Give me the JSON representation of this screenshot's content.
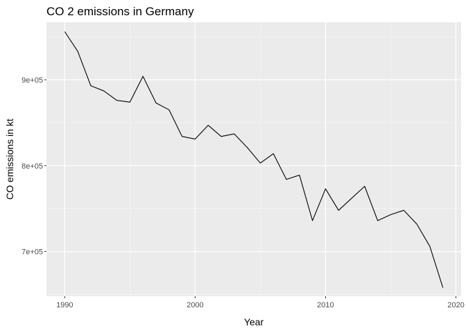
{
  "chart_data": {
    "type": "line",
    "title": "CO 2 emissions in Germany",
    "xlabel": "Year",
    "ylabel": "CO emissions in kt",
    "xlim": [
      1988.6,
      2020.4
    ],
    "ylim": [
      648000,
      967000
    ],
    "x_ticks": [
      1990,
      2000,
      2010,
      2020
    ],
    "x_tick_labels": [
      "1990",
      "2000",
      "2010",
      "2020"
    ],
    "y_ticks": [
      700000,
      800000,
      900000
    ],
    "y_tick_labels": [
      "7e+05",
      "8e+05",
      "9e+05"
    ],
    "grid": true,
    "legend": "none",
    "series": [
      {
        "color": "#000000",
        "x": [
          1990,
          1991,
          1992,
          1993,
          1994,
          1995,
          1996,
          1997,
          1998,
          1999,
          2000,
          2001,
          2002,
          2003,
          2004,
          2005,
          2006,
          2007,
          2008,
          2009,
          2010,
          2011,
          2012,
          2013,
          2014,
          2015,
          2016,
          2017,
          2018,
          2019
        ],
        "values": [
          956000,
          933000,
          893000,
          887000,
          876000,
          874000,
          904000,
          873000,
          865000,
          834000,
          831000,
          847000,
          834000,
          837000,
          821000,
          803000,
          814000,
          784000,
          789000,
          736000,
          773000,
          748000,
          762000,
          776000,
          736000,
          743000,
          748000,
          732000,
          706000,
          658000
        ]
      }
    ]
  },
  "colors": {
    "panel_background": "#ebebeb",
    "grid_major": "#ffffff",
    "grid_minor": "#f7f7f7",
    "line": "#000000",
    "tick_text": "#4d4d4d"
  }
}
